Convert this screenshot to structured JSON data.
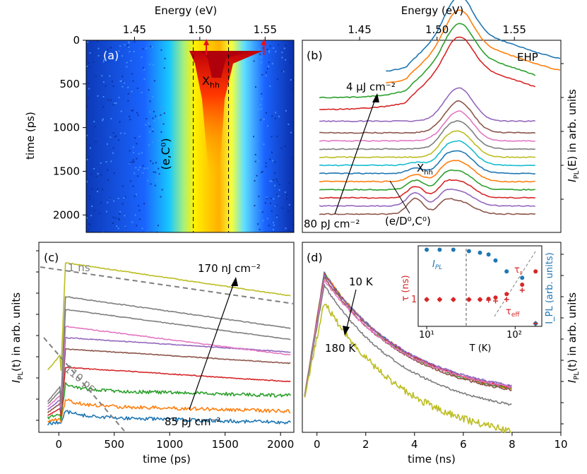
{
  "colors": {
    "c1": "#1f77b4",
    "c2": "#ff7f0e",
    "c3": "#2ca02c",
    "c4": "#d62728",
    "c5": "#9467bd",
    "c6": "#8c564b",
    "c7": "#e377c2",
    "c8": "#7f7f7f",
    "c9": "#bcbd22",
    "c10": "#17becf"
  },
  "chart_data": [
    {
      "id": "a",
      "type": "heatmap",
      "panel_label": "(a)",
      "top_xlabel": "Energy (eV)",
      "top_ticks": [
        "1.45",
        "1.50",
        "1.55"
      ],
      "top_tick_values": [
        1.45,
        1.5,
        1.55
      ],
      "x_range": [
        1.413,
        1.572
      ],
      "ylabel": "time (ps)",
      "y_ticks": [
        "0",
        "500",
        "1000",
        "1500",
        "2000"
      ],
      "y_tick_values": [
        0,
        500,
        1000,
        1500,
        2000
      ],
      "y_range": [
        0,
        2200
      ],
      "dashed_lines_eV": [
        1.495,
        1.522
      ],
      "arrows_eV": [
        1.505,
        1.549
      ],
      "annotations": [
        {
          "text": "(e,C⁰)",
          "eV": 1.49,
          "t": 1050
        },
        {
          "text": "X",
          "sub": "hh",
          "eV": 1.527,
          "t": 480
        }
      ],
      "colormap": "jet"
    },
    {
      "id": "b",
      "type": "line",
      "panel_label": "(b)",
      "top_xlabel": "Energy (eV)",
      "top_ticks": [
        "1.45",
        "1.50",
        "1.55"
      ],
      "top_tick_values": [
        1.45,
        1.5,
        1.55
      ],
      "x_range": [
        1.413,
        1.58
      ],
      "ylabel": "I_PL(E) in arb. units",
      "ylabel_parts": {
        "i": "I",
        "sub": "PL",
        "rest": "(E) in arb. units"
      },
      "n_series": 16,
      "corner_label": "EHP",
      "annotations": {
        "high": "4 µJ cm⁻²",
        "low": "80 pJ cm⁻²",
        "xhh": "X",
        "xhh_sub": "hh",
        "donor": "(e/D⁰,C⁰)"
      }
    },
    {
      "id": "c",
      "type": "line",
      "panel_label": "(c)",
      "xlabel": "time (ps)",
      "x_ticks": [
        "0",
        "500",
        "1000",
        "1500",
        "2000"
      ],
      "x_tick_values": [
        0,
        500,
        1000,
        1500,
        2000
      ],
      "x_range": [
        -180,
        2120
      ],
      "ylabel": "I_PL(t) in arb. units",
      "scale": "log",
      "n_series": 10,
      "annotations": {
        "high": "170 nJ cm⁻²",
        "low": "85 pJ cm⁻²",
        "tau1": "1 ns",
        "tau2": "110 ps"
      }
    },
    {
      "id": "d",
      "type": "line",
      "panel_label": "(d)",
      "xlabel": "time (ns)",
      "x_ticks": [
        "0",
        "2",
        "4",
        "6",
        "8",
        "10"
      ],
      "x_tick_values": [
        0,
        2,
        4,
        6,
        8,
        10
      ],
      "x_range": [
        -0.6,
        10
      ],
      "ylabel": "I_PL(t) in arb. units",
      "scale": "log",
      "n_series": 9,
      "annotations": {
        "low_T": "10 K",
        "high_T": "180 K"
      },
      "inset": {
        "type": "scatter",
        "xlabel": "T (K)",
        "x_scale": "log",
        "x_range": [
          8,
          200
        ],
        "x_ticks": [
          "10¹",
          "10²"
        ],
        "x_tick_values": [
          10,
          100
        ],
        "ylabel_left": "τ (ns)",
        "ylabel_right": "I_PL (arb. units)",
        "y_tick_label": "1",
        "series": [
          {
            "name": "I_PL",
            "marker": "circle",
            "T": [
              10,
              14,
              20,
              30,
              40,
              50,
              60,
              80,
              120,
              170
            ],
            "values": [
              40,
              40,
              40,
              36,
              32,
              28,
              18,
              8,
              5,
              0.16
            ]
          },
          {
            "name": "τ_r",
            "marker": "circle",
            "T": [
              10,
              14,
              20,
              30,
              40,
              50,
              60,
              80,
              120,
              170
            ],
            "values": [
              1,
              1,
              1,
              1,
              1,
              1.05,
              1.15,
              1.5,
              3,
              8
            ]
          },
          {
            "name": "τ_eff",
            "marker": "plus",
            "T": [
              10,
              14,
              20,
              30,
              40,
              50,
              60,
              80,
              120,
              170
            ],
            "values": [
              1,
              1,
              1,
              1,
              1,
              0.95,
              0.9,
              1.0,
              2.0,
              0.12
            ]
          }
        ],
        "labels": {
          "ipl": "I",
          "ipl_sub": "PL",
          "tau_r": "τ",
          "tau_r_sub": "r",
          "tau_eff": "τ",
          "tau_eff_sub": "eff"
        }
      }
    }
  ]
}
